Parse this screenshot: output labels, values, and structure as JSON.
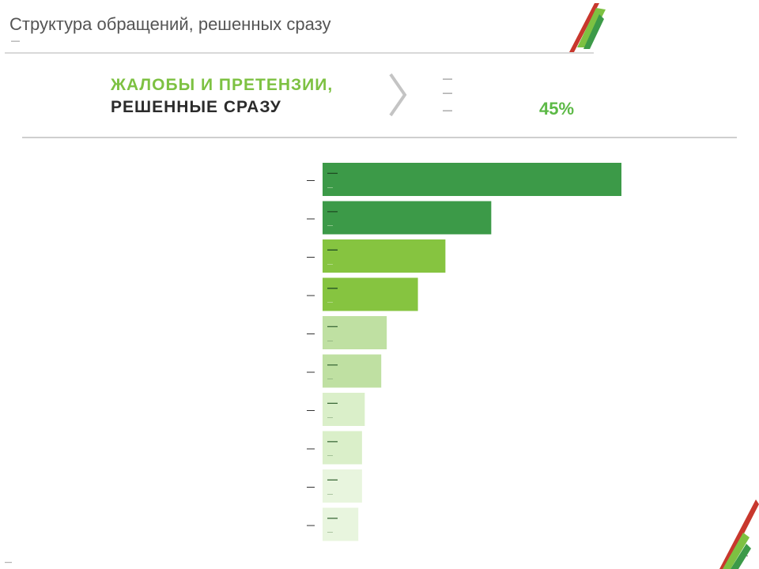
{
  "header": {
    "title": "Структура обращений, решенных сразу",
    "subtitle": "—"
  },
  "summary": {
    "headline_accent": "ЖАЛОБЫ И ПРЕТЕНЗИИ,",
    "headline_main": "РЕШЕННЫЕ СРАЗУ",
    "callout_line1": "—",
    "callout_line2": "—",
    "callout_line3": "—",
    "callout_percent": "45%"
  },
  "chart_data": {
    "type": "bar",
    "orientation": "horizontal",
    "categories": [
      "—",
      "—",
      "—",
      "—",
      "—",
      "—",
      "—",
      "—",
      "—",
      "—"
    ],
    "values": [
      16.3,
      9.2,
      6.7,
      5.2,
      3.5,
      3.2,
      2.3,
      2.15,
      2.15,
      1.95
    ],
    "value_labels": [
      "—",
      "—",
      "—",
      "—",
      "—",
      "—",
      "—",
      "—",
      "—",
      "—"
    ],
    "sub_labels": [
      "—",
      "—",
      "—",
      "—",
      "—",
      "—",
      "—",
      "—",
      "—",
      "—"
    ],
    "colors": [
      "#3c9a48",
      "#3c9a48",
      "#86c440",
      "#86c440",
      "#bfe0a2",
      "#bfe0a2",
      "#daefc9",
      "#daefc9",
      "#e8f5de",
      "#e8f5de"
    ],
    "xlim": [
      0,
      16.3
    ],
    "grid": false,
    "legend": "none",
    "title": "",
    "xlabel": "",
    "ylabel": ""
  },
  "footer": {
    "note": "—",
    "page": "—"
  },
  "colors": {
    "accent_green": "#7dc142",
    "dark_green": "#3c9a48",
    "percent_green": "#5cb946",
    "logo_red": "#c8372d"
  },
  "icons": {
    "brand_logo": "brand-logo-icon",
    "chevron": "chevron-right-icon",
    "corner_logo": "brand-logo-icon"
  }
}
